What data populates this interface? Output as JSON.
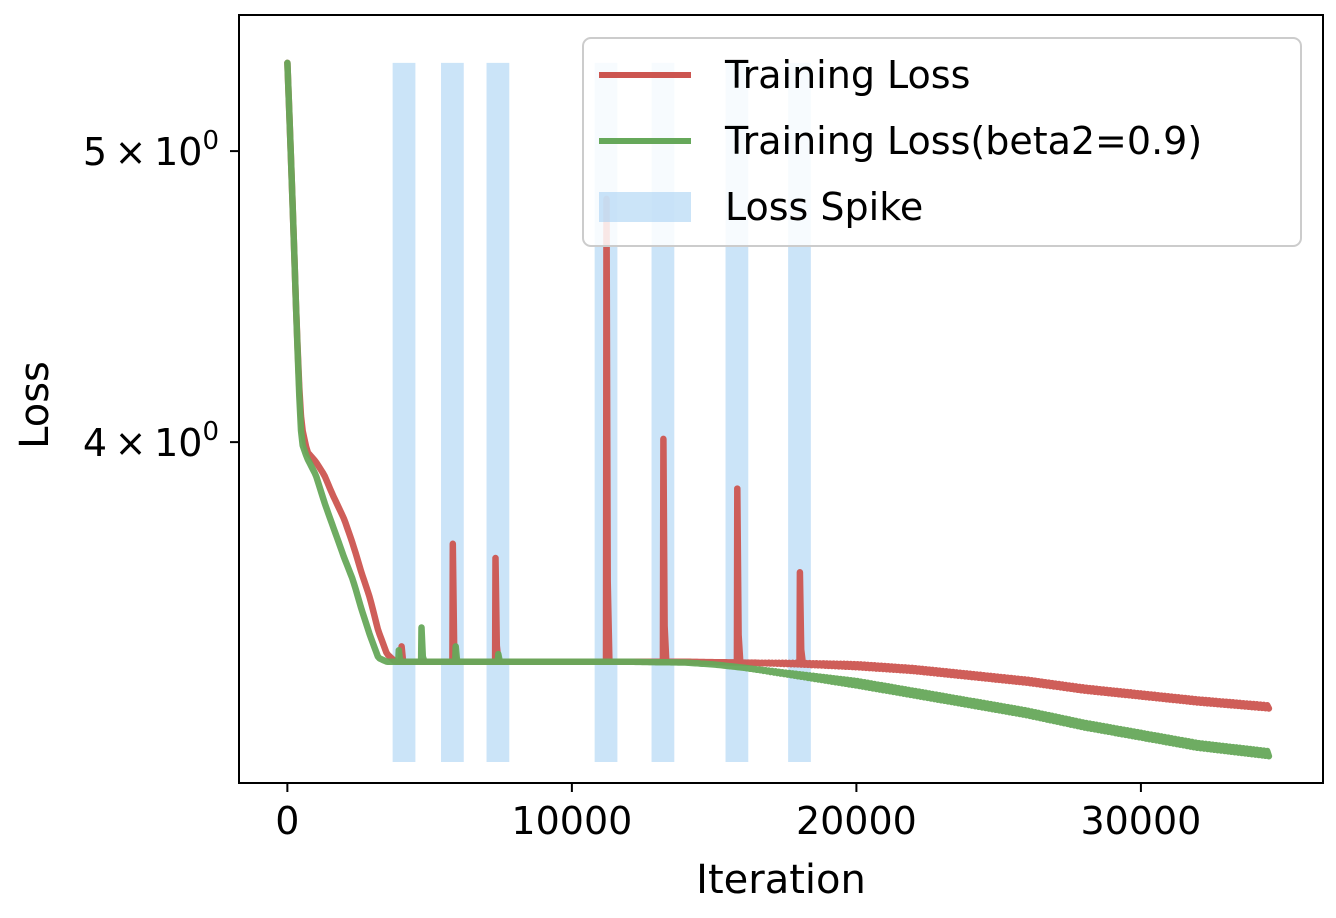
{
  "chart_data": {
    "type": "line",
    "title": "",
    "xlabel": "Iteration",
    "ylabel": "Loss",
    "yscale": "log",
    "xlim": [
      -1700,
      36400
    ],
    "ylim": [
      3.08,
      5.55
    ],
    "x_ticks": [
      {
        "value": 0,
        "label": "0"
      },
      {
        "value": 10000,
        "label": "10000"
      },
      {
        "value": 20000,
        "label": "20000"
      },
      {
        "value": 30000,
        "label": "30000"
      }
    ],
    "y_ticks": [
      {
        "value": 4,
        "base": "4",
        "exp": "0"
      },
      {
        "value": 5,
        "base": "5",
        "exp": "0"
      }
    ],
    "grid": false,
    "legend": {
      "position": "top-right",
      "entries": [
        {
          "label": "Training Loss",
          "color": "#cc5550",
          "kind": "line"
        },
        {
          "label": "Training Loss(beta2=0.9)",
          "color": "#66a85a",
          "kind": "line"
        },
        {
          "label": "Loss Spike",
          "color": "#a9d2f3",
          "kind": "patch"
        }
      ]
    },
    "spike_regions": {
      "series": "Loss Spike",
      "y_range": [
        3.13,
        5.35
      ],
      "color": "#a9d2f3",
      "intervals": [
        [
          3700,
          4500
        ],
        [
          5400,
          6200
        ],
        [
          7000,
          7800
        ],
        [
          10800,
          11600
        ],
        [
          12800,
          13600
        ],
        [
          15400,
          16200
        ],
        [
          17600,
          18400
        ]
      ]
    },
    "series": [
      {
        "name": "Training Loss",
        "color": "#cc5550",
        "points": [
          [
            0,
            5.35
          ],
          [
            150,
            4.9
          ],
          [
            300,
            4.45
          ],
          [
            400,
            4.2
          ],
          [
            500,
            4.05
          ],
          [
            700,
            3.97
          ],
          [
            1000,
            3.94
          ],
          [
            1300,
            3.9
          ],
          [
            1600,
            3.84
          ],
          [
            2000,
            3.77
          ],
          [
            2300,
            3.7
          ],
          [
            2600,
            3.62
          ],
          [
            2900,
            3.55
          ],
          [
            3200,
            3.46
          ],
          [
            3500,
            3.4
          ],
          [
            3800,
            3.38
          ],
          [
            4200,
            3.38
          ],
          [
            5000,
            3.38
          ],
          [
            6000,
            3.38
          ],
          [
            8000,
            3.38
          ],
          [
            10000,
            3.38
          ],
          [
            12000,
            3.38
          ],
          [
            14000,
            3.38
          ],
          [
            16000,
            3.378
          ],
          [
            18000,
            3.375
          ],
          [
            20000,
            3.37
          ],
          [
            22000,
            3.36
          ],
          [
            24000,
            3.345
          ],
          [
            26000,
            3.33
          ],
          [
            28000,
            3.31
          ],
          [
            30000,
            3.295
          ],
          [
            32000,
            3.28
          ],
          [
            34500,
            3.265
          ]
        ],
        "spikes": [
          [
            4000,
            3.42
          ],
          [
            5800,
            3.7
          ],
          [
            7300,
            3.66
          ],
          [
            11200,
            4.82
          ],
          [
            13200,
            4.01
          ],
          [
            15800,
            3.86
          ],
          [
            18000,
            3.62
          ]
        ]
      },
      {
        "name": "Training Loss(beta2=0.9)",
        "color": "#66a85a",
        "points": [
          [
            0,
            5.35
          ],
          [
            150,
            4.9
          ],
          [
            300,
            4.45
          ],
          [
            400,
            4.18
          ],
          [
            500,
            4.0
          ],
          [
            700,
            3.95
          ],
          [
            1000,
            3.9
          ],
          [
            1300,
            3.82
          ],
          [
            1600,
            3.75
          ],
          [
            2000,
            3.66
          ],
          [
            2300,
            3.6
          ],
          [
            2600,
            3.52
          ],
          [
            2900,
            3.45
          ],
          [
            3200,
            3.39
          ],
          [
            3500,
            3.38
          ],
          [
            4200,
            3.38
          ],
          [
            6000,
            3.38
          ],
          [
            8000,
            3.38
          ],
          [
            10000,
            3.38
          ],
          [
            12000,
            3.38
          ],
          [
            14000,
            3.378
          ],
          [
            15000,
            3.373
          ],
          [
            16000,
            3.365
          ],
          [
            17000,
            3.355
          ],
          [
            18000,
            3.345
          ],
          [
            20000,
            3.325
          ],
          [
            22000,
            3.3
          ],
          [
            24000,
            3.275
          ],
          [
            26000,
            3.25
          ],
          [
            28000,
            3.22
          ],
          [
            30000,
            3.195
          ],
          [
            32000,
            3.17
          ],
          [
            34500,
            3.15
          ]
        ],
        "spikes": [
          [
            3900,
            3.41
          ],
          [
            4700,
            3.47
          ],
          [
            5900,
            3.42
          ],
          [
            7400,
            3.4
          ]
        ]
      }
    ]
  }
}
